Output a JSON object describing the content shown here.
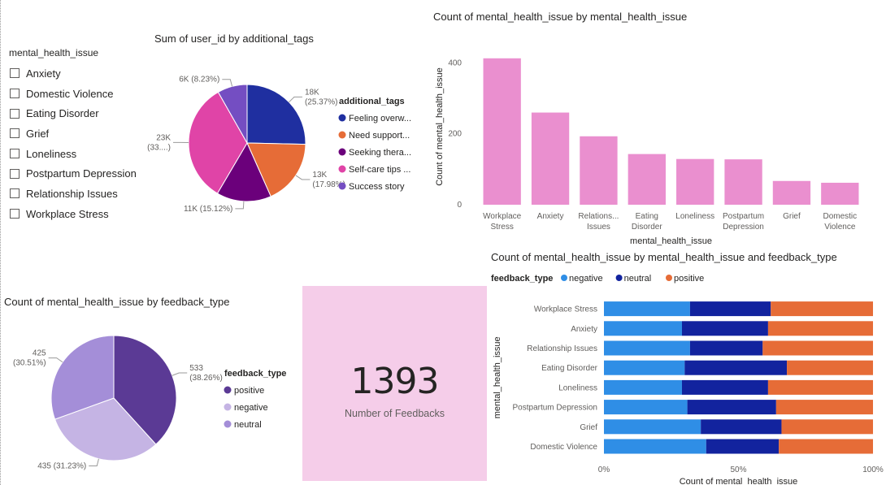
{
  "slicer": {
    "title": "mental_health_issue",
    "items": [
      "Anxiety",
      "Domestic Violence",
      "Eating Disorder",
      "Grief",
      "Loneliness",
      "Postpartum Depression",
      "Relationship Issues",
      "Workplace Stress"
    ]
  },
  "card": {
    "value": "1393",
    "label": "Number of Feedbacks"
  },
  "colors": {
    "navy": "#1f2fa0",
    "orange": "#e66c37",
    "purple": "#6b007b",
    "pink": "#e044a7",
    "violet": "#744ec2",
    "bar_pink": "#ea8fcf",
    "blue": "#2f8ee6",
    "dark_navy": "#12239e",
    "fb_positive": "#5b3a95",
    "fb_negative": "#c5b4e4",
    "fb_neutral": "#a48ed8",
    "card_bg": "#f5cde9"
  },
  "chart_data": [
    {
      "id": "tags-pie",
      "type": "pie",
      "title": "Sum of user_id by additional_tags",
      "legend_title": "additional_tags",
      "legend_position": "right",
      "categories": [
        "Feeling overw...",
        "Need support...",
        "Seeking thera...",
        "Self-care tips ...",
        "Success story"
      ],
      "values": [
        25.37,
        17.98,
        15.12,
        33.3,
        8.23
      ],
      "labels": [
        [
          "18K",
          "(25.37%)"
        ],
        [
          "13K",
          "(17.98%)"
        ],
        [
          "11K (15.12%)"
        ],
        [
          "23K",
          "(33....)"
        ],
        [
          "6K (8.23%)"
        ]
      ]
    },
    {
      "id": "issue-bar",
      "type": "bar",
      "title": "Count of mental_health_issue by mental_health_issue",
      "xlabel": "mental_health_issue",
      "ylabel": "Count of mental_health_issue",
      "categories": [
        [
          "Workplace",
          "Stress"
        ],
        [
          "Anxiety"
        ],
        [
          "Relations...",
          "Issues"
        ],
        [
          "Eating",
          "Disorder"
        ],
        [
          "Loneliness"
        ],
        [
          "Postpartum",
          "Depression"
        ],
        [
          "Grief"
        ],
        [
          "Domestic",
          "Violence"
        ]
      ],
      "values": [
        413,
        260,
        193,
        143,
        129,
        128,
        67,
        62
      ],
      "ylim": [
        0,
        440
      ],
      "yticks": [
        0,
        200,
        400
      ],
      "grid": false
    },
    {
      "id": "feedback-pie",
      "type": "pie",
      "title": "Count of mental_health_issue by feedback_type",
      "legend_title": "feedback_type",
      "legend_position": "right",
      "categories": [
        "positive",
        "negative",
        "neutral"
      ],
      "values": [
        533,
        435,
        425
      ],
      "labels": [
        [
          "533",
          "(38.26%)"
        ],
        [
          "435 (31.23%)"
        ],
        [
          "425",
          "(30.51%)"
        ]
      ]
    },
    {
      "id": "stacked-bar",
      "type": "bar",
      "orientation": "horizontal",
      "stacked": "100%",
      "title": "Count of mental_health_issue by mental_health_issue and feedback_type",
      "legend_title": "feedback_type",
      "legend_position": "top-left",
      "xlabel": "Count of mental_health_issue",
      "ylabel": "mental_health_issue",
      "xticks": [
        "0%",
        "50%",
        "100%"
      ],
      "categories": [
        "Workplace Stress",
        "Anxiety",
        "Relationship Issues",
        "Eating Disorder",
        "Loneliness",
        "Postpartum Depression",
        "Grief",
        "Domestic Violence"
      ],
      "series": [
        {
          "name": "negative",
          "values": [
            32,
            29,
            32,
            30,
            29,
            31,
            36,
            38
          ]
        },
        {
          "name": "neutral",
          "values": [
            30,
            32,
            27,
            38,
            32,
            33,
            30,
            27
          ]
        },
        {
          "name": "positive",
          "values": [
            38,
            39,
            41,
            32,
            39,
            36,
            34,
            35
          ]
        }
      ]
    }
  ]
}
